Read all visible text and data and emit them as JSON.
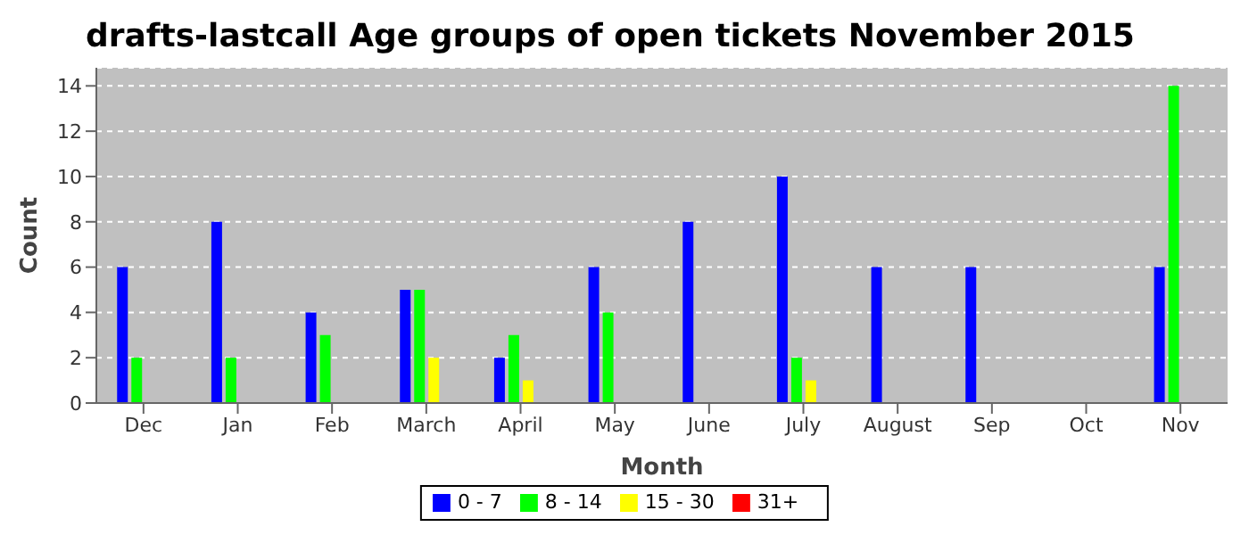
{
  "chart_data": {
    "type": "bar",
    "title": "drafts-lastcall Age groups of open tickets November 2015",
    "xlabel": "Month",
    "ylabel": "Count",
    "categories": [
      "Dec",
      "Jan",
      "Feb",
      "March",
      "April",
      "May",
      "June",
      "July",
      "August",
      "Sep",
      "Oct",
      "Nov"
    ],
    "series": [
      {
        "name": "0 - 7",
        "color": "#0000ff",
        "values": [
          6,
          8,
          4,
          5,
          2,
          6,
          8,
          10,
          6,
          6,
          0,
          6
        ]
      },
      {
        "name": "8 - 14",
        "color": "#00ff00",
        "values": [
          2,
          2,
          3,
          5,
          3,
          4,
          0,
          2,
          0,
          0,
          0,
          14
        ]
      },
      {
        "name": "15 - 30",
        "color": "#ffff00",
        "values": [
          0,
          0,
          0,
          2,
          1,
          0,
          0,
          1,
          0,
          0,
          0,
          0
        ]
      },
      {
        "name": "31+",
        "color": "#ff0000",
        "values": [
          0,
          0,
          0,
          0,
          0,
          0,
          0,
          0,
          0,
          0,
          0,
          0
        ]
      }
    ],
    "ylim": [
      0,
      14.8
    ],
    "yticks": [
      0,
      2,
      4,
      6,
      8,
      10,
      12,
      14
    ],
    "grid": "y",
    "legend": "bottom"
  }
}
